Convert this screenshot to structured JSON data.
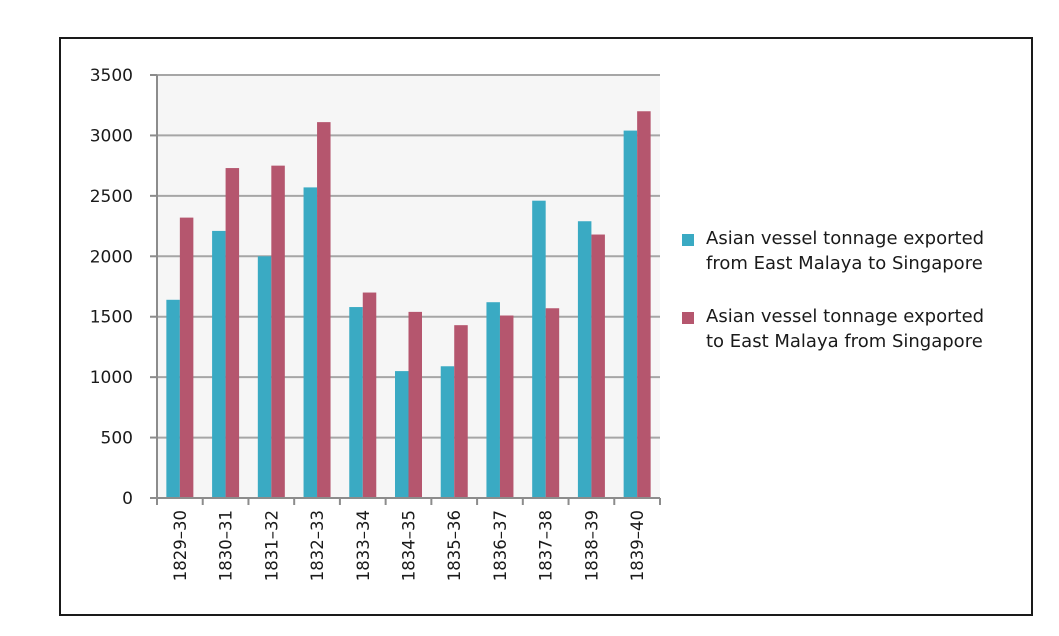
{
  "chart_data": {
    "type": "bar",
    "title": "",
    "xlabel": "",
    "ylabel": "",
    "ylim": [
      0,
      3500
    ],
    "yticks": [
      "0",
      "500",
      "1000",
      "1500",
      "2000",
      "2500",
      "3000",
      "3500"
    ],
    "grid": true,
    "legend_position": "right",
    "categories": [
      "1829–30",
      "1830–31",
      "1831–32",
      "1832–33",
      "1833–34",
      "1834–35",
      "1835–36",
      "1836–37",
      "1837–38",
      "1838–39",
      "1839–40"
    ],
    "series": [
      {
        "name_lines": [
          "Asian vessel tonnage exported",
          "from East Malaya to Singapore"
        ],
        "color": "#3aaac3",
        "values": [
          1640,
          2210,
          2000,
          2570,
          1580,
          1050,
          1090,
          1620,
          2460,
          2290,
          3040
        ]
      },
      {
        "name_lines": [
          "Asian vessel tonnage exported",
          "to East Malaya from Singapore"
        ],
        "color": "#b5566e",
        "values": [
          2320,
          2730,
          2750,
          3110,
          1700,
          1540,
          1430,
          1510,
          1570,
          2180,
          3200
        ]
      }
    ]
  }
}
